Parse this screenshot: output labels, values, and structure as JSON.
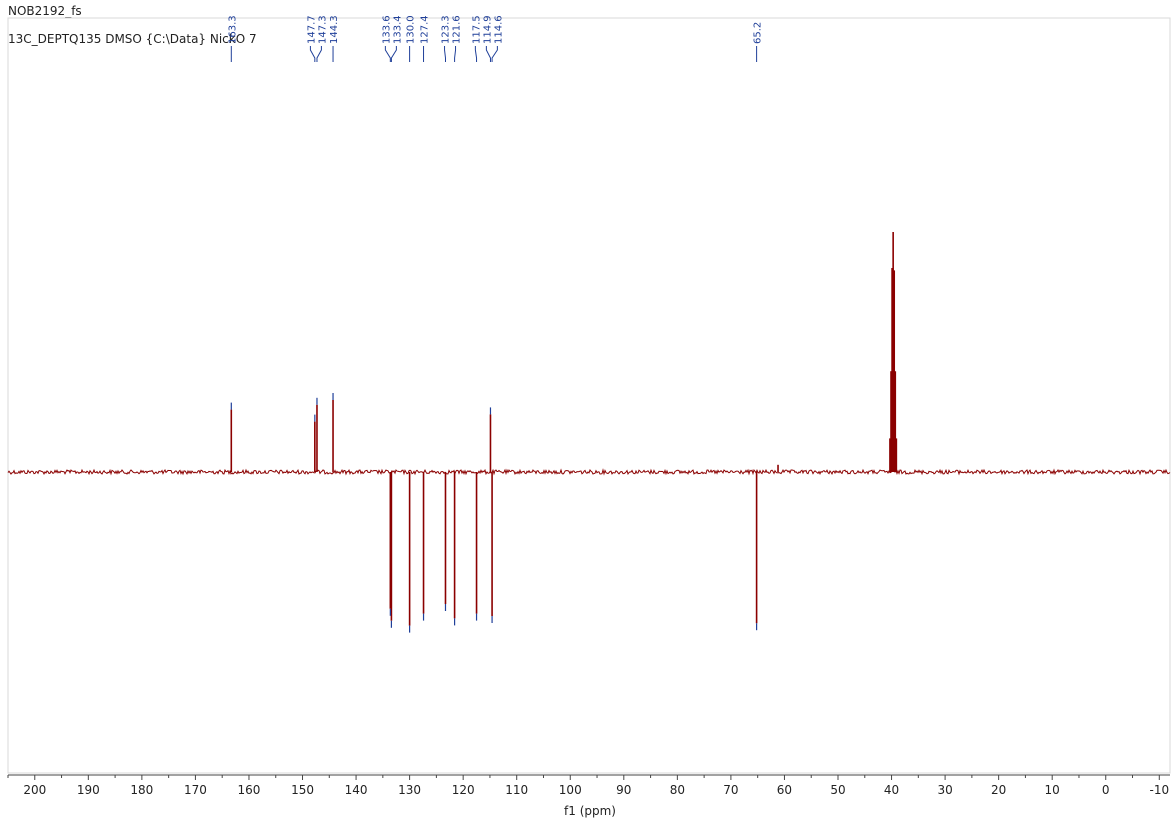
{
  "header": {
    "sample_name": "NOB2192_fs",
    "experiment": "13C_DEPTQ135 DMSO {C:\\Data} NickO 7"
  },
  "chart_data": {
    "type": "line",
    "title": "NOB2192_fs",
    "subtitle": "13C_DEPTQ135 DMSO {C:\\Data} NickO 7",
    "xlabel": "f1 (ppm)",
    "ylabel": "",
    "xlim": [
      205,
      -12
    ],
    "x_ticks": [
      200,
      190,
      180,
      170,
      160,
      150,
      140,
      130,
      120,
      110,
      100,
      90,
      80,
      70,
      60,
      50,
      40,
      30,
      20,
      10,
      0,
      -10
    ],
    "ylim": [
      -1.0,
      1.0
    ],
    "grid": false,
    "line_color": "#8b0000",
    "peak_label_color": "#1f3f99",
    "peak_labels": [
      "163.3",
      "147.7",
      "147.3",
      "144.3",
      "133.6",
      "133.4",
      "130.0",
      "127.4",
      "123.3",
      "121.6",
      "117.5",
      "114.9",
      "114.6",
      "65.2"
    ],
    "peaks": [
      {
        "ppm": 163.3,
        "intensity": 0.26
      },
      {
        "ppm": 147.7,
        "intensity": 0.21
      },
      {
        "ppm": 147.3,
        "intensity": 0.28
      },
      {
        "ppm": 144.3,
        "intensity": 0.3
      },
      {
        "ppm": 133.6,
        "intensity": -0.57
      },
      {
        "ppm": 133.4,
        "intensity": -0.62
      },
      {
        "ppm": 130.0,
        "intensity": -0.64
      },
      {
        "ppm": 127.4,
        "intensity": -0.59
      },
      {
        "ppm": 123.3,
        "intensity": -0.55
      },
      {
        "ppm": 121.6,
        "intensity": -0.61
      },
      {
        "ppm": 117.5,
        "intensity": -0.59
      },
      {
        "ppm": 114.9,
        "intensity": 0.24
      },
      {
        "ppm": 114.6,
        "intensity": -0.6
      },
      {
        "ppm": 65.2,
        "intensity": -0.63
      }
    ],
    "solvent_peaks": [
      {
        "ppm": 40.1,
        "intensity": 0.42
      },
      {
        "ppm": 39.9,
        "intensity": 0.85
      },
      {
        "ppm": 39.7,
        "intensity": 1.0
      },
      {
        "ppm": 39.5,
        "intensity": 0.84
      },
      {
        "ppm": 39.3,
        "intensity": 0.42
      },
      {
        "ppm": 39.1,
        "intensity": 0.14
      },
      {
        "ppm": 40.3,
        "intensity": 0.14
      },
      {
        "ppm": 61.2,
        "intensity": 0.03
      }
    ]
  }
}
